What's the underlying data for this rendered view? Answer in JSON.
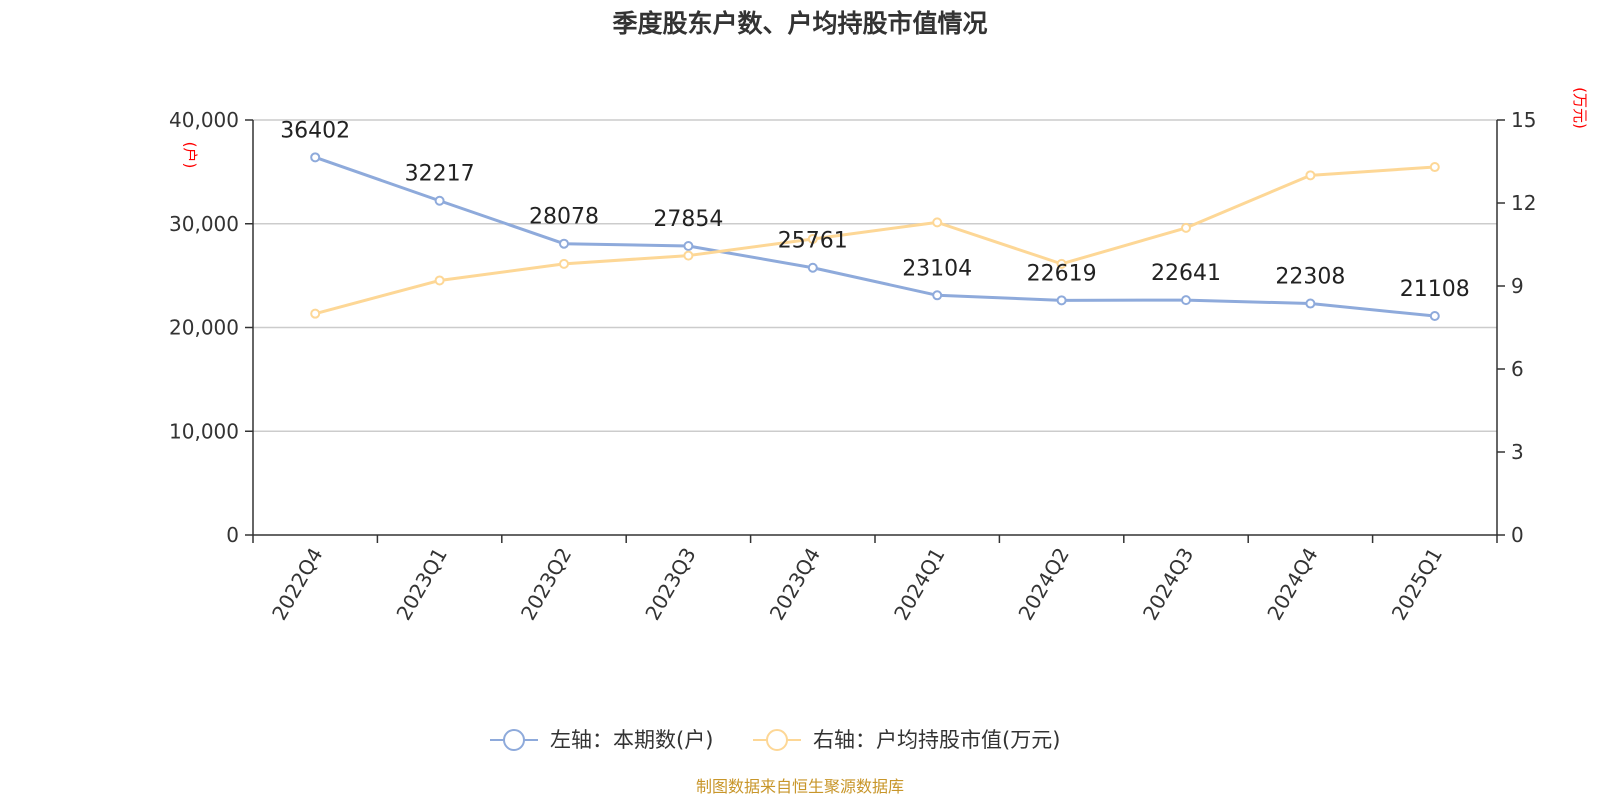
{
  "chart_data": {
    "type": "line",
    "title": "季度股东户数、户均持股市值情况",
    "categories": [
      "2022Q4",
      "2023Q1",
      "2023Q2",
      "2023Q3",
      "2023Q4",
      "2024Q1",
      "2024Q2",
      "2024Q3",
      "2024Q4",
      "2025Q1"
    ],
    "series": [
      {
        "name": "左轴：本期数(户)",
        "axis": "left",
        "color": "#8eaadb",
        "values": [
          36402,
          32217,
          28078,
          27854,
          25761,
          23104,
          22619,
          22641,
          22308,
          21108
        ],
        "data_labels": [
          "36402",
          "32217",
          "28078",
          "27854",
          "25761",
          "23104",
          "22619",
          "22641",
          "22308",
          "21108"
        ]
      },
      {
        "name": "右轴：户均持股市值(万元)",
        "axis": "right",
        "color": "#fdd796",
        "values": [
          8.0,
          9.2,
          9.8,
          10.1,
          10.7,
          11.3,
          9.8,
          11.1,
          13.0,
          13.3
        ]
      }
    ],
    "left_axis": {
      "unit": "(户)",
      "ylim": [
        0,
        40000
      ],
      "ticks": [
        0,
        10000,
        20000,
        30000,
        40000
      ],
      "tick_labels": [
        "0",
        "10,000",
        "20,000",
        "30,000",
        "40,000"
      ]
    },
    "right_axis": {
      "unit": "(万元)",
      "ylim": [
        0,
        15
      ],
      "ticks": [
        0,
        3,
        6,
        9,
        12,
        15
      ],
      "tick_labels": [
        "0",
        "3",
        "6",
        "9",
        "12",
        "15"
      ]
    },
    "grid": true,
    "legend_position": "bottom"
  },
  "source_text": "制图数据来自恒生聚源数据库",
  "colors": {
    "left_series": "#8eaadb",
    "right_series": "#fdd796",
    "unit_text": "#ff0000",
    "source": "#c8962a",
    "grid": "#cccccc",
    "axis": "#333333"
  }
}
